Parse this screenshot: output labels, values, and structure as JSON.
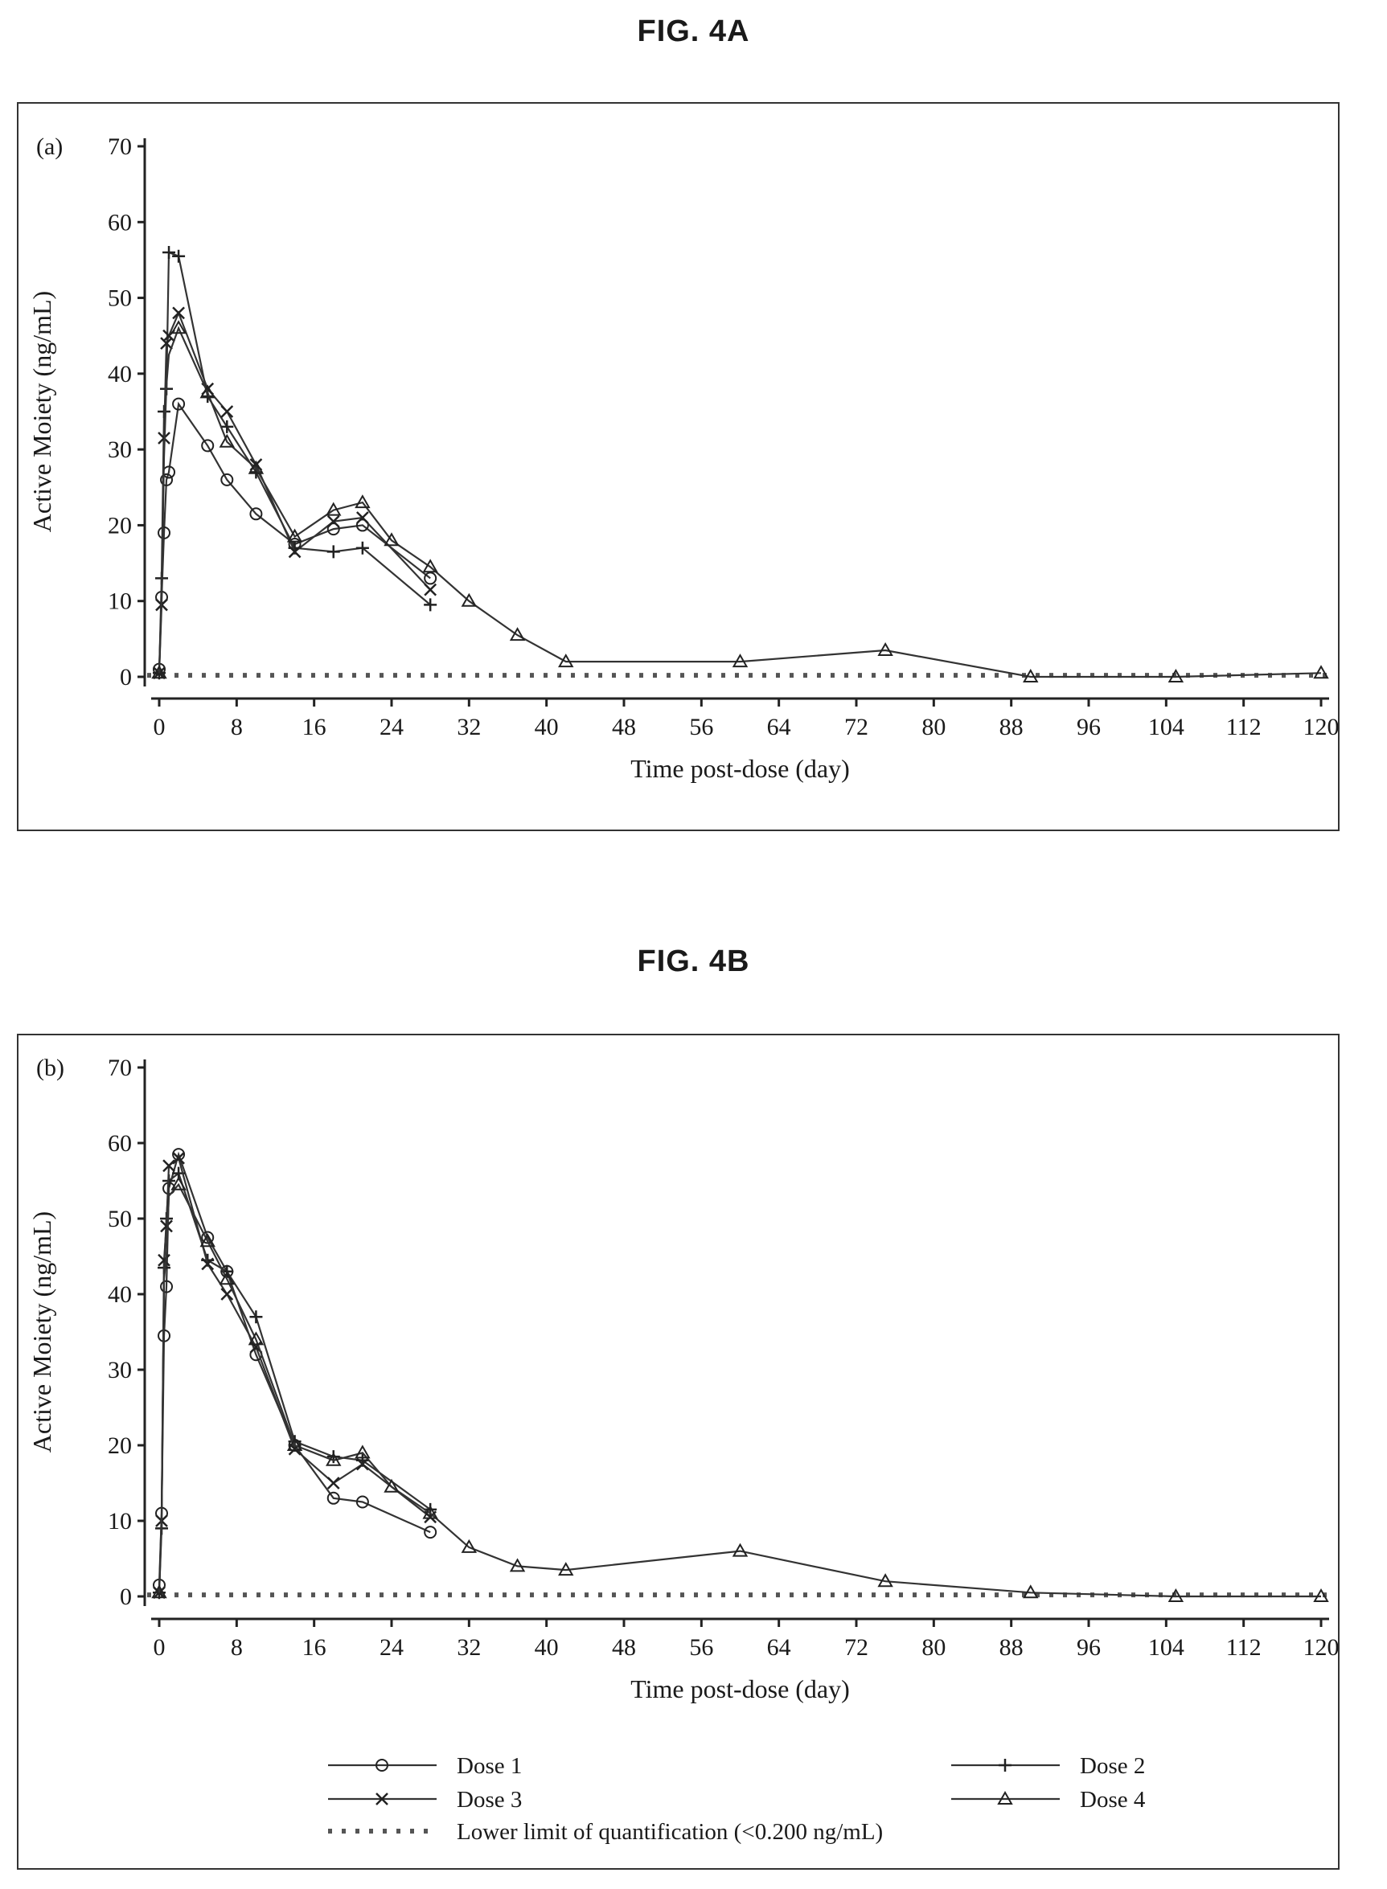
{
  "figures": [
    {
      "title": "FIG. 4A"
    },
    {
      "title": "FIG. 4B"
    }
  ],
  "chart_data": [
    {
      "type": "line",
      "panel_label": "(a)",
      "xlabel": "Time post-dose (day)",
      "ylabel": "Active Moiety (ng/mL)",
      "xlim": [
        0,
        120
      ],
      "ylim": [
        0,
        70
      ],
      "xticks": [
        0,
        8,
        16,
        24,
        32,
        40,
        48,
        56,
        64,
        72,
        80,
        88,
        96,
        104,
        112,
        120
      ],
      "yticks": [
        0,
        10,
        20,
        30,
        40,
        50,
        60,
        70
      ],
      "grid": false,
      "lloq": 0.2,
      "series": [
        {
          "name": "Dose 1",
          "marker": "circle",
          "x": [
            0,
            0.25,
            0.5,
            0.75,
            1,
            2,
            5,
            7,
            10,
            14,
            18,
            21,
            28
          ],
          "y": [
            1,
            10.5,
            19,
            26,
            27,
            36,
            30.5,
            26,
            21.5,
            17.5,
            19.5,
            20,
            13
          ]
        },
        {
          "name": "Dose 2",
          "marker": "plus",
          "x": [
            0,
            0.25,
            0.5,
            0.75,
            1,
            2,
            5,
            7,
            10,
            14,
            18,
            21,
            28
          ],
          "y": [
            0.5,
            13,
            35,
            38,
            56,
            55.5,
            37,
            33,
            27,
            17,
            16.5,
            17,
            9.5
          ]
        },
        {
          "name": "Dose 3",
          "marker": "x",
          "x": [
            0,
            0.25,
            0.5,
            0.75,
            1,
            2,
            5,
            7,
            10,
            14,
            18,
            21,
            28
          ],
          "y": [
            0.5,
            9.5,
            31.5,
            44,
            45,
            48,
            38,
            35,
            28,
            16.5,
            20.5,
            21,
            11.5
          ]
        },
        {
          "name": "Dose 4",
          "marker": "triangle",
          "x": [
            0,
            0.25,
            0.5,
            0.75,
            1,
            2,
            5,
            7,
            10,
            14,
            18,
            21,
            24,
            28,
            32,
            37,
            42,
            60,
            75,
            90,
            105,
            120
          ],
          "y": [
            0.5,
            11,
            29,
            38.5,
            42.5,
            46,
            37.5,
            31,
            27.5,
            18.5,
            22,
            23,
            18,
            14.5,
            10,
            5.5,
            2,
            2,
            3.5,
            0,
            0,
            0.5
          ]
        }
      ]
    },
    {
      "type": "line",
      "panel_label": "(b)",
      "xlabel": "Time post-dose (day)",
      "ylabel": "Active Moiety (ng/mL)",
      "xlim": [
        0,
        120
      ],
      "ylim": [
        0,
        70
      ],
      "xticks": [
        0,
        8,
        16,
        24,
        32,
        40,
        48,
        56,
        64,
        72,
        80,
        88,
        96,
        104,
        112,
        120
      ],
      "yticks": [
        0,
        10,
        20,
        30,
        40,
        50,
        60,
        70
      ],
      "grid": false,
      "lloq": 0.2,
      "series": [
        {
          "name": "Dose 1",
          "marker": "circle",
          "x": [
            0,
            0.25,
            0.5,
            0.75,
            1,
            2,
            5,
            7,
            10,
            14,
            18,
            21,
            28
          ],
          "y": [
            1.5,
            11,
            34.5,
            41,
            54,
            58.5,
            47.5,
            43,
            32,
            20,
            13,
            12.5,
            8.5
          ]
        },
        {
          "name": "Dose 2",
          "marker": "plus",
          "x": [
            0,
            0.25,
            0.5,
            0.75,
            1,
            2,
            5,
            7,
            10,
            14,
            18,
            21,
            28
          ],
          "y": [
            0.5,
            9,
            43.5,
            50,
            55,
            56,
            44.5,
            43,
            37,
            20.5,
            18.5,
            18,
            11.5
          ]
        },
        {
          "name": "Dose 3",
          "marker": "x",
          "x": [
            0,
            0.25,
            0.5,
            0.75,
            1,
            2,
            5,
            7,
            10,
            14,
            18,
            21,
            28
          ],
          "y": [
            0.5,
            10,
            44.5,
            49,
            57,
            58,
            44,
            40,
            33,
            19.5,
            15,
            17.5,
            10.5
          ]
        },
        {
          "name": "Dose 4",
          "marker": "triangle",
          "x": [
            0,
            0.25,
            0.5,
            0.75,
            1,
            2,
            5,
            7,
            10,
            14,
            18,
            21,
            24,
            28,
            32,
            37,
            42,
            60,
            75,
            90,
            105,
            120
          ],
          "y": [
            0.5,
            11,
            42,
            45,
            53,
            54.5,
            47,
            42,
            34,
            20,
            18,
            19,
            14.5,
            11,
            6.5,
            4,
            3.5,
            6,
            2,
            0.5,
            0,
            0
          ]
        }
      ],
      "legend": {
        "position": "bottom",
        "entries": [
          {
            "label": "Dose 1",
            "marker": "circle"
          },
          {
            "label": "Dose 2",
            "marker": "plus"
          },
          {
            "label": "Dose 3",
            "marker": "x"
          },
          {
            "label": "Dose 4",
            "marker": "triangle"
          },
          {
            "label": "Lower limit of quantification (<0.200 ng/mL)",
            "marker": "dotted"
          }
        ]
      }
    }
  ]
}
